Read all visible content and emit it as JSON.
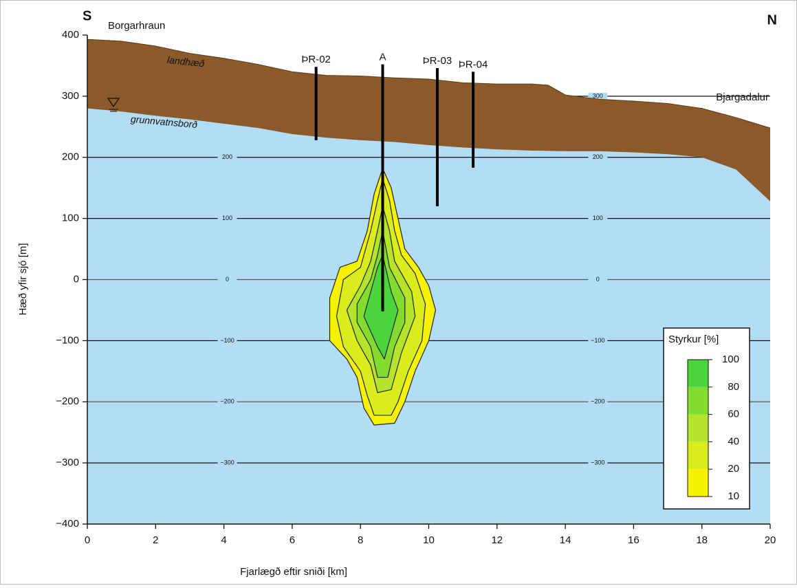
{
  "chart_data": {
    "type": "cross-section",
    "corner_left": "S",
    "corner_right": "N",
    "xlabel": "Fjarlægð eftir sniði [km]",
    "ylabel": "Hæð yfir sjó [m]",
    "xlim": [
      0,
      20
    ],
    "ylim": [
      -400,
      400
    ],
    "xticks": [
      0,
      2,
      4,
      6,
      8,
      10,
      12,
      14,
      16,
      18,
      20
    ],
    "yticks": [
      {
        "value": -400,
        "label": "−400"
      },
      {
        "value": -300,
        "label": "−300"
      },
      {
        "value": -200,
        "label": "−200"
      },
      {
        "value": -100,
        "label": "−100"
      },
      0,
      100,
      200,
      300,
      400
    ],
    "grid": true,
    "water_color": "#b3dcf5",
    "ground_color": "#8b5a2b",
    "annotations": {
      "left_place": "Borgarhraun",
      "right_place": "Bjargadalur",
      "surface": "landhæð",
      "water_table": "grunnvatnsborð"
    },
    "surface": {
      "name": "landhæð",
      "x": [
        0,
        1,
        2,
        3,
        4,
        5,
        6,
        7,
        8,
        9,
        10,
        11,
        12,
        13,
        13.5,
        14,
        15,
        16,
        17,
        18,
        19,
        20
      ],
      "values": [
        393,
        390,
        382,
        370,
        362,
        352,
        340,
        334,
        333,
        330,
        328,
        322,
        320,
        320,
        318,
        302,
        295,
        292,
        288,
        280,
        265,
        248
      ]
    },
    "water_table": {
      "name": "grunnvatnsborð",
      "x": [
        0,
        1,
        2,
        3,
        4,
        5,
        6,
        7,
        8,
        9,
        10,
        11,
        12,
        13,
        14,
        15,
        16,
        17,
        18,
        19,
        20
      ],
      "values": [
        280,
        275,
        268,
        262,
        255,
        248,
        238,
        232,
        228,
        225,
        220,
        216,
        213,
        211,
        210,
        210,
        208,
        205,
        200,
        180,
        128
      ]
    },
    "wells": [
      {
        "name": "ÞR-02",
        "x": 6.7,
        "top": 348,
        "bottom": 228
      },
      {
        "name": "A",
        "x": 8.65,
        "top": 352,
        "bottom": -52
      },
      {
        "name": "ÞR-03",
        "x": 10.25,
        "top": 346,
        "bottom": 120
      },
      {
        "name": "ÞR-04",
        "x": 11.3,
        "top": 340,
        "bottom": 183
      }
    ],
    "legend_title": "Styrkur [%]",
    "colorbar_ticks": [
      10,
      20,
      40,
      60,
      80,
      100
    ],
    "contours": [
      {
        "color": "#f6f200",
        "x": [
          8.65,
          8.9,
          9.1,
          9.3,
          9.7,
          10.0,
          10.2,
          10.0,
          9.6,
          9.3,
          9.0,
          8.4,
          8.1,
          7.9,
          7.6,
          7.1,
          7.1,
          7.4,
          7.9,
          8.2,
          8.4
        ],
        "y": [
          182,
          150,
          100,
          50,
          20,
          -10,
          -50,
          -100,
          -150,
          -200,
          -235,
          -238,
          -210,
          -160,
          -130,
          -100,
          -30,
          20,
          30,
          80,
          140
        ]
      },
      {
        "color": "#d9ec1c",
        "x": [
          8.65,
          8.85,
          9.0,
          9.2,
          9.6,
          9.9,
          9.8,
          9.4,
          9.1,
          8.9,
          8.4,
          8.2,
          8.0,
          7.5,
          7.3,
          7.5,
          8.0,
          8.3,
          8.5
        ],
        "y": [
          165,
          130,
          80,
          40,
          10,
          -40,
          -100,
          -150,
          -200,
          -222,
          -222,
          -190,
          -150,
          -110,
          -60,
          0,
          20,
          80,
          130
        ]
      },
      {
        "color": "#b4e42c",
        "x": [
          8.65,
          8.85,
          9.0,
          9.5,
          9.6,
          9.2,
          8.9,
          8.5,
          8.3,
          7.9,
          7.6,
          8.0,
          8.3,
          8.5
        ],
        "y": [
          120,
          80,
          30,
          -20,
          -60,
          -120,
          -180,
          -185,
          -140,
          -100,
          -50,
          -10,
          30,
          80
        ]
      },
      {
        "color": "#84dc30",
        "x": [
          8.65,
          8.85,
          9.3,
          9.3,
          9.0,
          8.8,
          8.5,
          8.3,
          7.9,
          7.9,
          8.3,
          8.5
        ],
        "y": [
          80,
          20,
          -30,
          -70,
          -110,
          -160,
          -160,
          -110,
          -70,
          -40,
          0,
          40
        ]
      },
      {
        "color": "#4cd43c",
        "x": [
          8.65,
          8.9,
          9.1,
          8.9,
          8.7,
          8.5,
          8.1,
          8.3,
          8.5
        ],
        "y": [
          40,
          -20,
          -50,
          -90,
          -130,
          -110,
          -60,
          -20,
          20
        ]
      }
    ]
  }
}
